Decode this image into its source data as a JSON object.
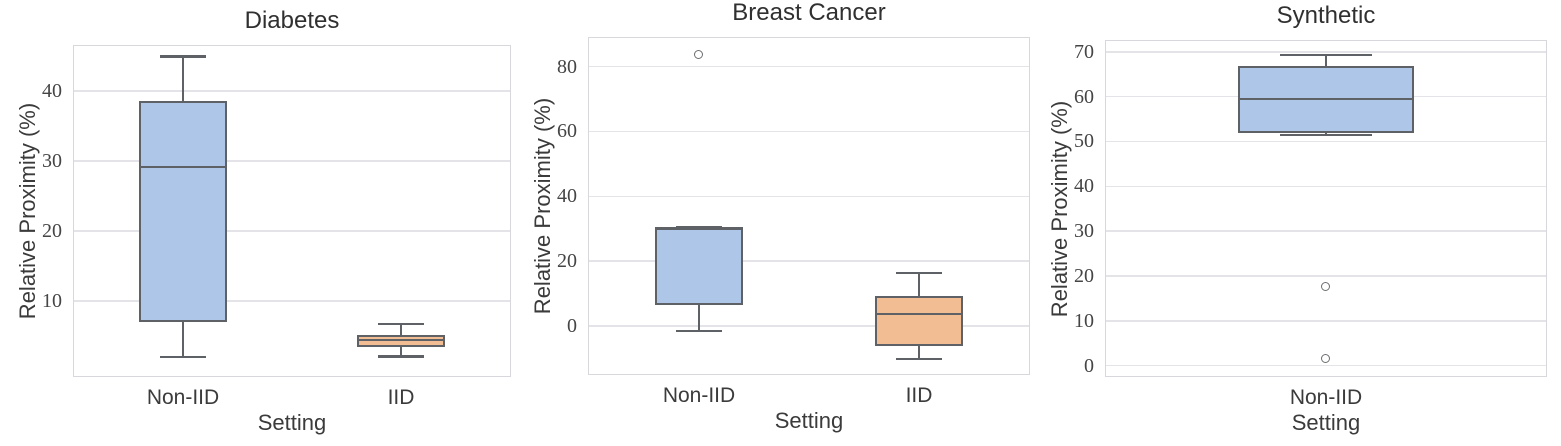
{
  "figure": {
    "background": "#ffffff",
    "line_color": "#5e6166",
    "gridline_color": "#e4e4e8",
    "spine_color": "#d8d8dc",
    "tick_label_color": "#454545",
    "text_color": "#3b3b3b",
    "blue_fill": "#aec7e8",
    "orange_fill": "#f2bd92"
  },
  "chart_data": [
    {
      "type": "box",
      "title": "Diabetes",
      "xlabel": "Setting",
      "ylabel": "Relative Proximity (%)",
      "categories": [
        "Non-IID",
        "IID"
      ],
      "yticks": [
        10,
        20,
        30,
        40
      ],
      "ylim": [
        -0.7,
        46.4
      ],
      "grid": true,
      "legend": "none",
      "series": [
        {
          "category": "Non-IID",
          "fill": "#aec7e8",
          "whisker_low": 2.0,
          "q1": 7.0,
          "median": 29.2,
          "q3": 38.6,
          "whisker_high": 44.9,
          "outliers": []
        },
        {
          "category": "IID",
          "fill": "#f2bd92",
          "whisker_low": 2.1,
          "q1": 3.4,
          "median": 4.5,
          "q3": 5.1,
          "whisker_high": 6.7,
          "outliers": []
        }
      ]
    },
    {
      "type": "box",
      "title": "Breast Cancer",
      "xlabel": "Setting",
      "ylabel": "Relative Proximity (%)",
      "categories": [
        "Non-IID",
        "IID"
      ],
      "yticks": [
        0,
        20,
        40,
        60,
        80
      ],
      "ylim": [
        -14.8,
        88.8
      ],
      "grid": true,
      "legend": "none",
      "series": [
        {
          "category": "Non-IID",
          "fill": "#aec7e8",
          "whisker_low": -1.6,
          "q1": 6.4,
          "median": 29.9,
          "q3": 30.4,
          "whisker_high": 30.4,
          "outliers": [
            83.5
          ]
        },
        {
          "category": "IID",
          "fill": "#f2bd92",
          "whisker_low": -10.2,
          "q1": -6.3,
          "median": 3.6,
          "q3": 9.1,
          "whisker_high": 16.3,
          "outliers": []
        }
      ]
    },
    {
      "type": "box",
      "title": "Synthetic",
      "xlabel": "Setting",
      "ylabel": "Relative Proximity (%)",
      "categories": [
        "Non-IID"
      ],
      "yticks": [
        0,
        10,
        20,
        30,
        40,
        50,
        60,
        70
      ],
      "ylim": [
        -2.3,
        72.4
      ],
      "grid": true,
      "legend": "none",
      "series": [
        {
          "category": "Non-IID",
          "fill": "#aec7e8",
          "whisker_low": 51.4,
          "q1": 51.9,
          "median": 59.4,
          "q3": 66.8,
          "whisker_high": 69.3,
          "outliers": [
            17.5,
            1.5
          ]
        }
      ]
    }
  ]
}
